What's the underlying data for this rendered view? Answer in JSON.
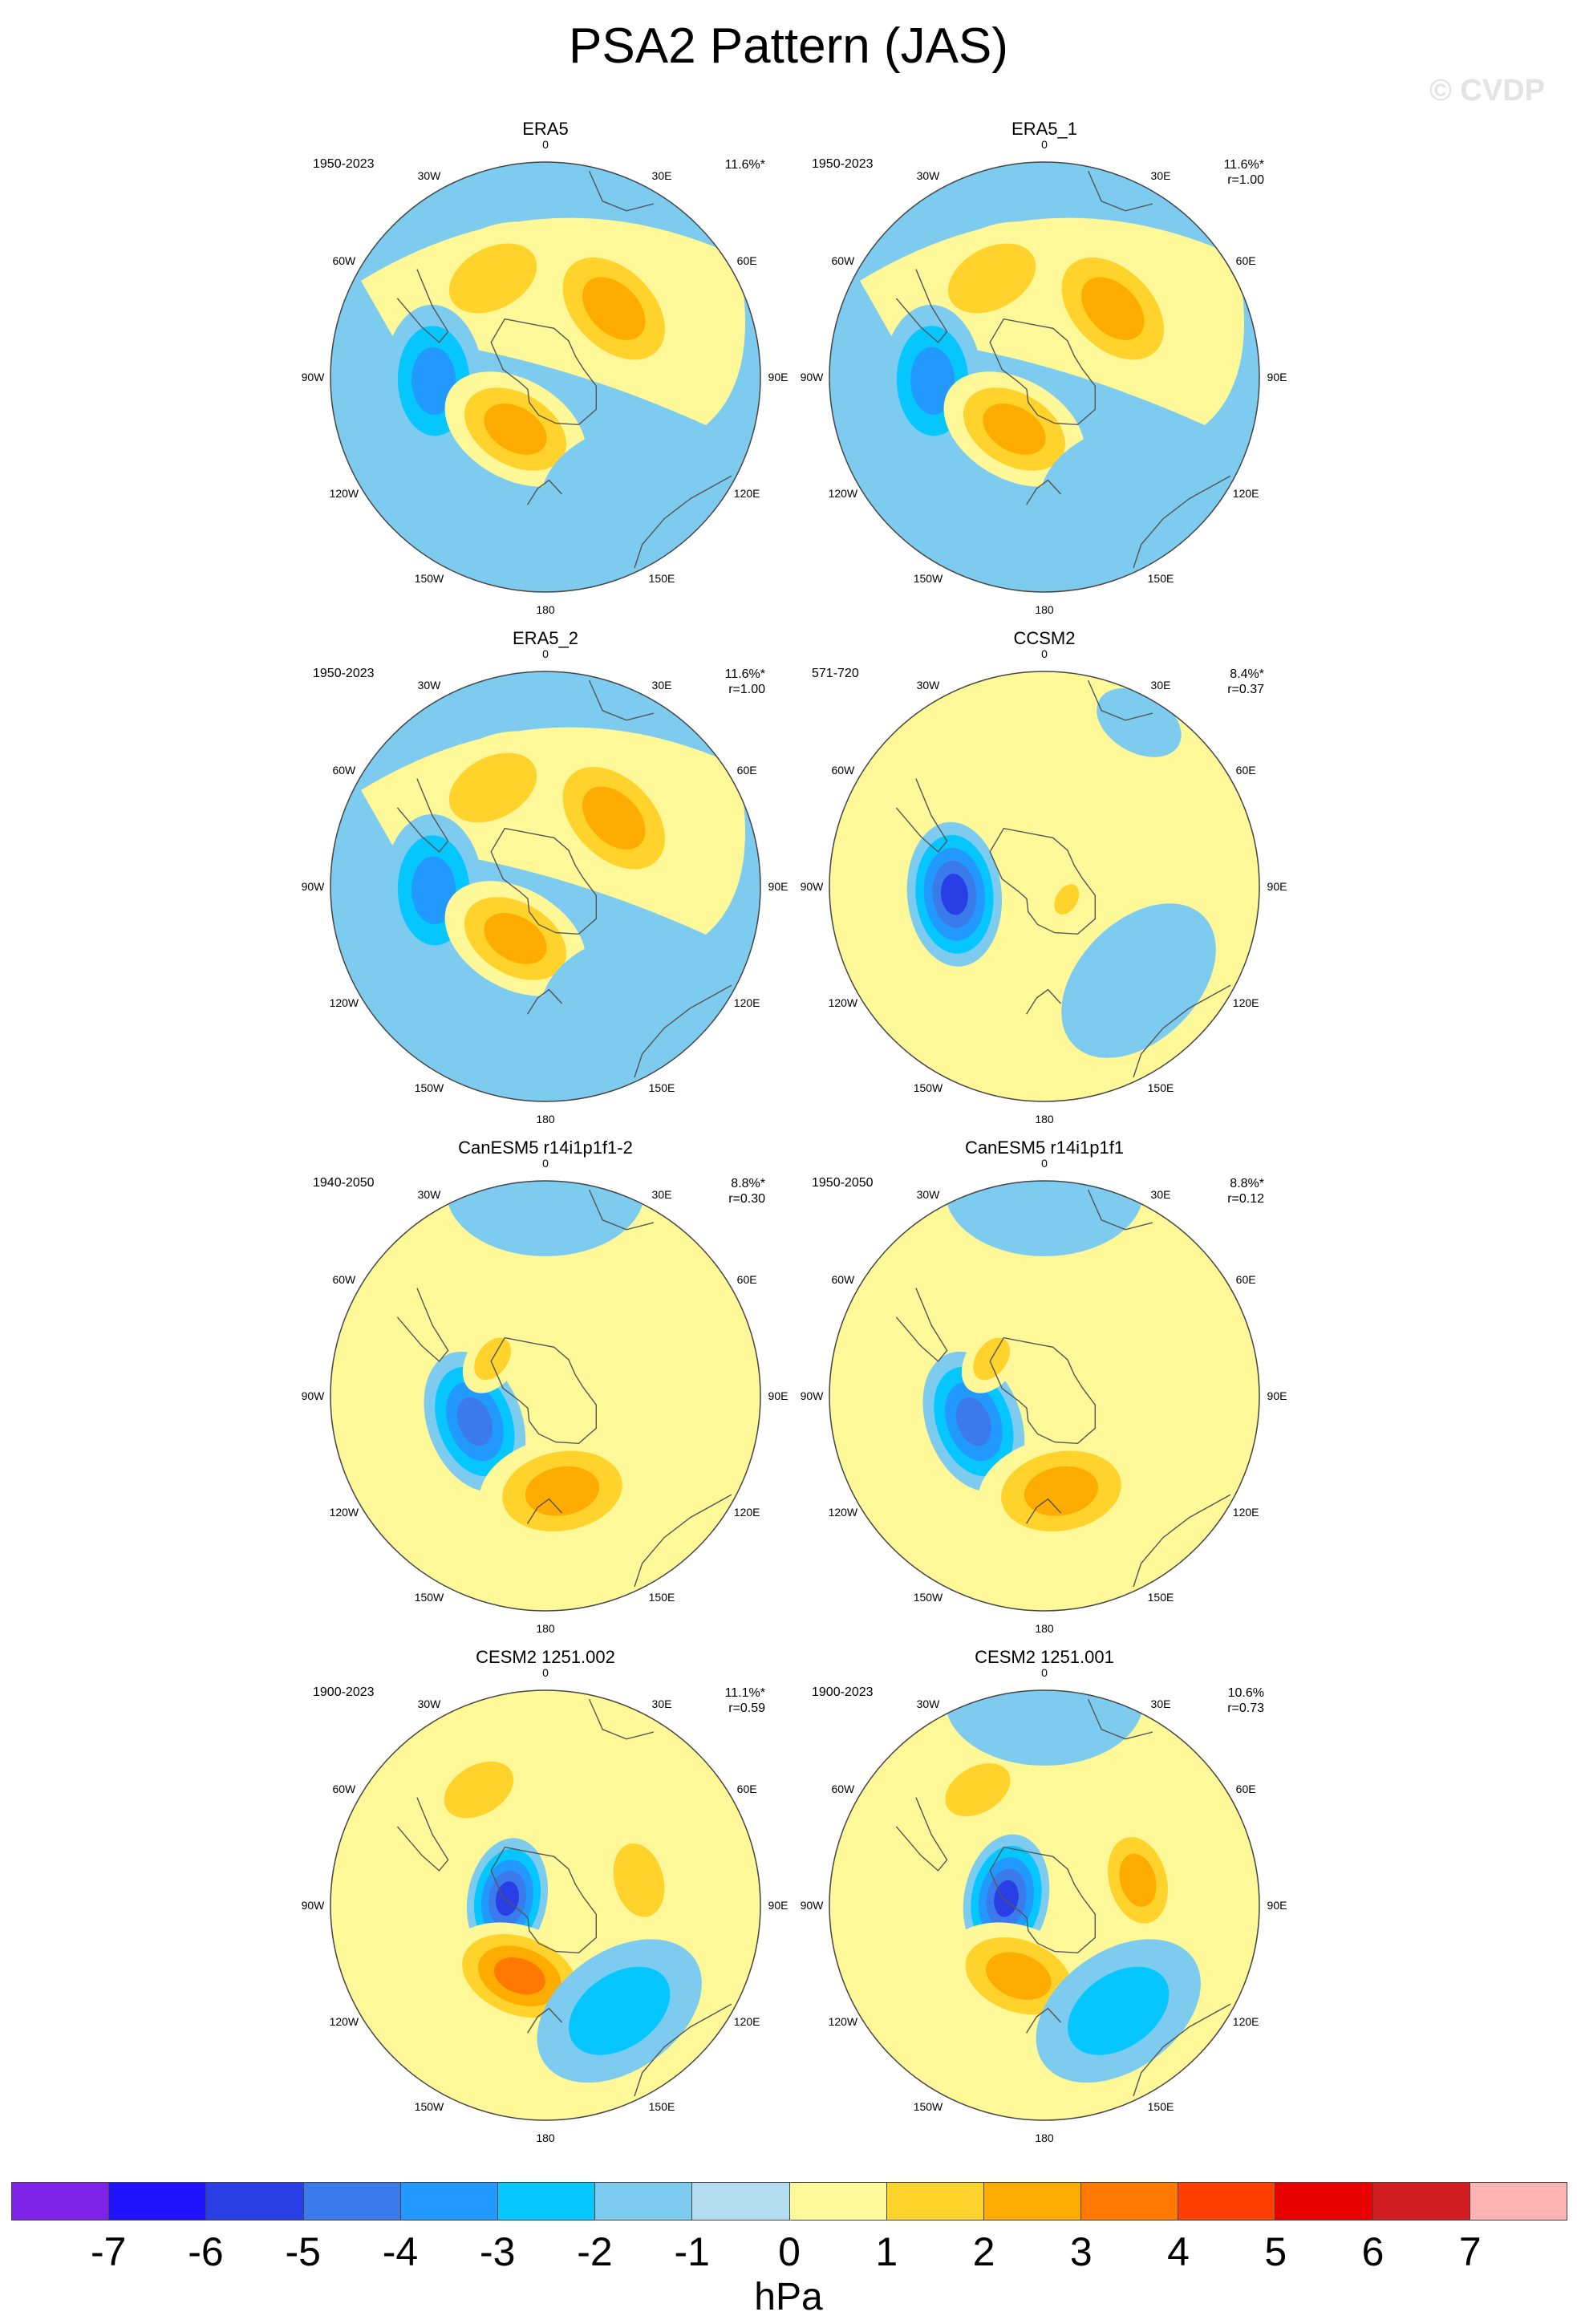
{
  "title": "PSA2 Pattern (JAS)",
  "watermark": "© CVDP",
  "map": {
    "projection": "south-polar stereographic",
    "lon_labels": [
      "0",
      "30E",
      "60E",
      "90E",
      "120E",
      "150E",
      "180",
      "150W",
      "120W",
      "90W",
      "60W",
      "30W"
    ]
  },
  "panels": [
    {
      "title": "ERA5",
      "years": "1950-2023",
      "pct": "11.6%*",
      "r": "",
      "blobs": [
        {
          "name": "positive anomaly (60W-30W)",
          "lon": -28,
          "colat": 0.52,
          "level": 2,
          "size": 1.0
        },
        {
          "name": "positive anomaly (30E-60E)",
          "lon": 45,
          "colat": 0.45,
          "level": 3,
          "size": 1.1
        },
        {
          "name": "negative anomaly (90W)",
          "lon": -92,
          "colat": 0.52,
          "level": -3,
          "size": 1.0
        },
        {
          "name": "positive anomaly (120W)",
          "lon": -150,
          "colat": 0.28,
          "level": 3,
          "size": 1.0
        },
        {
          "name": "negative anomaly (150E)",
          "lon": 150,
          "colat": 0.55,
          "level": -1,
          "size": 0.9
        }
      ]
    },
    {
      "title": "ERA5_1",
      "years": "1950-2023",
      "pct": "11.6%*",
      "r": "r=1.00",
      "blobs": [
        {
          "name": "positive anomaly (60W-30W)",
          "lon": -28,
          "colat": 0.52,
          "level": 2,
          "size": 1.0
        },
        {
          "name": "positive anomaly (30E-60E)",
          "lon": 45,
          "colat": 0.45,
          "level": 3,
          "size": 1.1
        },
        {
          "name": "negative anomaly (90W)",
          "lon": -92,
          "colat": 0.52,
          "level": -3,
          "size": 1.0
        },
        {
          "name": "positive anomaly (120W)",
          "lon": -150,
          "colat": 0.28,
          "level": 3,
          "size": 1.0
        },
        {
          "name": "negative anomaly (150E)",
          "lon": 150,
          "colat": 0.55,
          "level": -1,
          "size": 0.9
        }
      ]
    },
    {
      "title": "ERA5_2",
      "years": "1950-2023",
      "pct": "11.6%*",
      "r": "r=1.00",
      "blobs": [
        {
          "name": "positive anomaly (60W-30W)",
          "lon": -28,
          "colat": 0.52,
          "level": 2,
          "size": 1.0
        },
        {
          "name": "positive anomaly (30E-60E)",
          "lon": 45,
          "colat": 0.45,
          "level": 3,
          "size": 1.1
        },
        {
          "name": "negative anomaly (90W)",
          "lon": -92,
          "colat": 0.52,
          "level": -3,
          "size": 1.0
        },
        {
          "name": "positive anomaly (120W)",
          "lon": -150,
          "colat": 0.28,
          "level": 3,
          "size": 1.0
        },
        {
          "name": "negative anomaly (150E)",
          "lon": 150,
          "colat": 0.55,
          "level": -1,
          "size": 0.9
        }
      ]
    },
    {
      "title": "CCSM2",
      "years": "571-720",
      "pct": "8.4%*",
      "r": "r=0.37",
      "background": 1,
      "blobs": [
        {
          "name": "negative anomaly (90W)",
          "lon": -95,
          "colat": 0.42,
          "level": -5,
          "size": 0.95
        },
        {
          "name": "negative anomaly (150E-120E)",
          "lon": 135,
          "colat": 0.62,
          "level": -1,
          "size": 1.2
        },
        {
          "name": "negative anomaly (30E)",
          "lon": 30,
          "colat": 0.88,
          "level": -1,
          "size": 0.6
        },
        {
          "name": "positive anomaly (pole)",
          "lon": 120,
          "colat": 0.12,
          "level": 2,
          "size": 0.35
        }
      ]
    },
    {
      "title": "CanESM5 r14i1p1f1-2",
      "years": "1940-2050",
      "pct": "8.8%*",
      "r": "r=0.30",
      "background": 1,
      "blobs": [
        {
          "name": "negative anomaly (120W-90W)",
          "lon": -110,
          "colat": 0.35,
          "level": -4,
          "size": 0.95
        },
        {
          "name": "positive anomaly (180-150E)",
          "lon": 170,
          "colat": 0.45,
          "level": 3,
          "size": 1.1
        },
        {
          "name": "positive anomaly (60W)",
          "lon": -55,
          "colat": 0.3,
          "level": 2,
          "size": 0.5
        },
        {
          "name": "negative anomaly (0)",
          "lon": 0,
          "colat": 0.95,
          "level": -1,
          "size": 1.3
        }
      ]
    },
    {
      "title": "CanESM5 r14i1p1f1",
      "years": "1950-2050",
      "pct": "8.8%*",
      "r": "r=0.12",
      "background": 1,
      "blobs": [
        {
          "name": "negative anomaly (120W-90W)",
          "lon": -110,
          "colat": 0.35,
          "level": -4,
          "size": 0.95
        },
        {
          "name": "positive anomaly (180-150E)",
          "lon": 170,
          "colat": 0.45,
          "level": 3,
          "size": 1.1
        },
        {
          "name": "positive anomaly (60W)",
          "lon": -55,
          "colat": 0.3,
          "level": 2,
          "size": 0.5
        },
        {
          "name": "negative anomaly (0)",
          "lon": 0,
          "colat": 0.95,
          "level": -1,
          "size": 1.3
        }
      ]
    },
    {
      "title": "CESM2 1251.002",
      "years": "1900-2023",
      "pct": "11.1%*",
      "r": "r=0.59",
      "background": 1,
      "blobs": [
        {
          "name": "positive anomaly (30W)",
          "lon": -30,
          "colat": 0.62,
          "level": 2,
          "size": 0.8
        },
        {
          "name": "negative anomaly (90W)",
          "lon": -80,
          "colat": 0.18,
          "level": -5,
          "size": 0.8
        },
        {
          "name": "positive anomaly (60E-90E)",
          "lon": 75,
          "colat": 0.45,
          "level": 2,
          "size": 0.8
        },
        {
          "name": "positive anomaly (150W-180)",
          "lon": -160,
          "colat": 0.35,
          "level": 4,
          "size": 1.0
        },
        {
          "name": "negative anomaly (150E)",
          "lon": 145,
          "colat": 0.6,
          "level": -2,
          "size": 1.2
        }
      ]
    },
    {
      "title": "CESM2 1251.001",
      "years": "1900-2023",
      "pct": "10.6%",
      "r": "r=0.73",
      "background": 1,
      "blobs": [
        {
          "name": "positive anomaly (30W)",
          "lon": -30,
          "colat": 0.62,
          "level": 2,
          "size": 0.75
        },
        {
          "name": "negative anomaly (90W)",
          "lon": -80,
          "colat": 0.18,
          "level": -5,
          "size": 0.85
        },
        {
          "name": "positive anomaly (60E-90E)",
          "lon": 75,
          "colat": 0.45,
          "level": 3,
          "size": 0.8
        },
        {
          "name": "positive anomaly (150W-180)",
          "lon": -160,
          "colat": 0.35,
          "level": 3,
          "size": 1.0
        },
        {
          "name": "negative anomaly (150E)",
          "lon": 145,
          "colat": 0.6,
          "level": -2,
          "size": 1.2
        },
        {
          "name": "negative anomaly (0)",
          "lon": 0,
          "colat": 0.95,
          "level": -1,
          "size": 1.3
        }
      ]
    }
  ],
  "colorbar": {
    "colors": [
      "#7f22e8",
      "#1f12ff",
      "#2a3ee6",
      "#3b7aeb",
      "#2299ff",
      "#05c6ff",
      "#7dcbef",
      "#b5ddf1",
      "#fff899",
      "#ffd32b",
      "#ffac00",
      "#ff7800",
      "#ff3e00",
      "#eb0000",
      "#d11c21",
      "#ffb3b3"
    ],
    "ticks": [
      "-7",
      "-6",
      "-5",
      "-4",
      "-3",
      "-2",
      "-1",
      "0",
      "1",
      "2",
      "3",
      "4",
      "5",
      "6",
      "7"
    ],
    "unit": "hPa"
  }
}
